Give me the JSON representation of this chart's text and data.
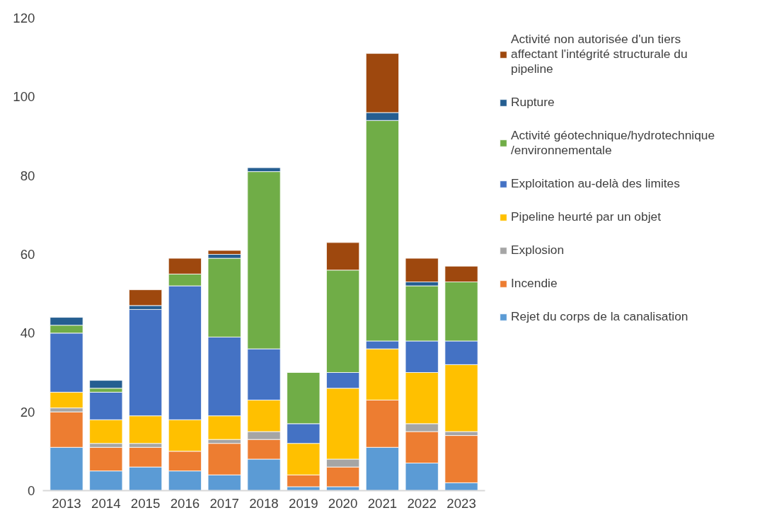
{
  "chart_data": {
    "type": "bar",
    "stacked": true,
    "categories": [
      "2013",
      "2014",
      "2015",
      "2016",
      "2017",
      "2018",
      "2019",
      "2020",
      "2021",
      "2022",
      "2023"
    ],
    "series": [
      {
        "name": "Rejet du corps de la canalisation",
        "color": "#5b9bd5",
        "values": [
          11,
          5,
          6,
          5,
          4,
          8,
          1,
          1,
          11,
          7,
          2
        ]
      },
      {
        "name": "Incendie",
        "color": "#ed7d31",
        "values": [
          9,
          6,
          5,
          5,
          8,
          5,
          3,
          5,
          12,
          8,
          12
        ]
      },
      {
        "name": "Explosion",
        "color": "#a5a5a5",
        "values": [
          1,
          1,
          1,
          0,
          1,
          2,
          0,
          2,
          0,
          2,
          1
        ]
      },
      {
        "name": "Pipeline heurté par un objet",
        "color": "#ffc000",
        "values": [
          4,
          6,
          7,
          8,
          6,
          8,
          8,
          18,
          13,
          13,
          17
        ]
      },
      {
        "name": "Exploitation au-delà des limites",
        "color": "#4472c4",
        "values": [
          15,
          7,
          27,
          34,
          20,
          13,
          5,
          4,
          2,
          8,
          6
        ]
      },
      {
        "name": "Activité géotechnique/hydrotechnique /environnementale",
        "color": "#70ad47",
        "values": [
          2,
          1,
          0,
          3,
          20,
          45,
          13,
          26,
          56,
          14,
          15
        ]
      },
      {
        "name": "Rupture",
        "color": "#255e91",
        "values": [
          2,
          2,
          1,
          0,
          1,
          1,
          0,
          0,
          2,
          1,
          0
        ]
      },
      {
        "name": "Activité non autorisée d'un tiers affectant l'intégrité structurale du pipeline",
        "color": "#9e480e",
        "values": [
          0,
          0,
          4,
          4,
          1,
          0,
          0,
          7,
          15,
          6,
          4
        ]
      }
    ],
    "ylim": [
      0,
      120
    ],
    "yticks": [
      0,
      20,
      40,
      60,
      80,
      100,
      120
    ],
    "grid": false,
    "legend": "right"
  }
}
